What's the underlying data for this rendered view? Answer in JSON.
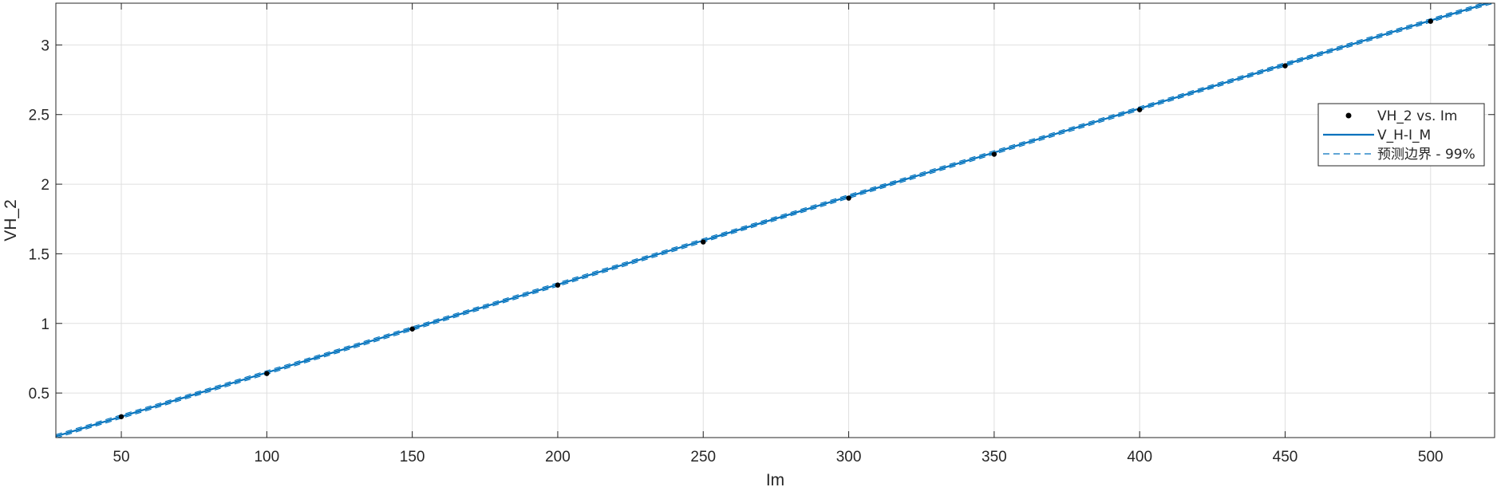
{
  "chart_data": {
    "type": "scatter",
    "xlabel": "Im",
    "ylabel": "VH_2",
    "xlim": [
      27.5,
      522
    ],
    "ylim": [
      0.18,
      3.3
    ],
    "xticks": [
      50,
      100,
      150,
      200,
      250,
      300,
      350,
      400,
      450,
      500
    ],
    "yticks": [
      0.5,
      1,
      1.5,
      2,
      2.5,
      3
    ],
    "grid": true,
    "legend_position": "right",
    "series": [
      {
        "name": "VH_2 vs. Im",
        "kind": "points",
        "color": "#000000",
        "x": [
          50,
          100,
          150,
          200,
          250,
          300,
          350,
          400,
          450,
          500
        ],
        "y": [
          0.33,
          0.64,
          0.96,
          1.275,
          1.585,
          1.9,
          2.215,
          2.535,
          2.85,
          3.17
        ]
      },
      {
        "name": "V_H-I_M",
        "kind": "fit-line",
        "color": "#0072BD",
        "slope": 0.006322,
        "intercept": 0.0148
      },
      {
        "name": "预测边界 - 99%",
        "kind": "prediction-bounds",
        "color": "#0072BD",
        "offset": 0.012
      }
    ]
  }
}
